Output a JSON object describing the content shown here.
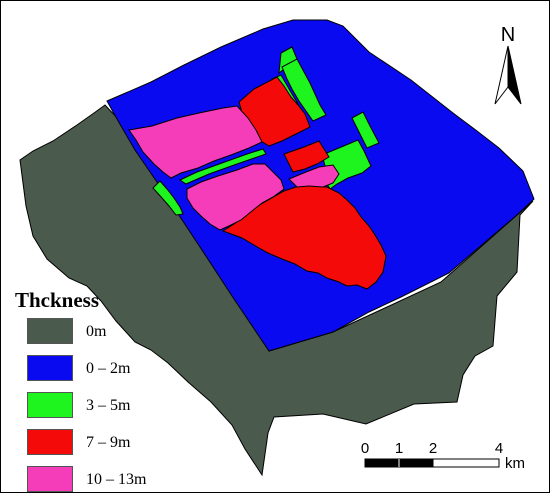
{
  "colors": {
    "dark_gray": "#4a5a4c",
    "blue": "#0a0af0",
    "green": "#1ef51e",
    "red": "#f50a0a",
    "pink": "#f53cb9"
  },
  "north_arrow": {
    "letter": "N",
    "icon": "north-arrow-icon"
  },
  "legend": {
    "title": "Thckness",
    "items": [
      {
        "label": "0m",
        "color": "#4a5a4c"
      },
      {
        "label": "0 – 2m",
        "color": "#0a0af0"
      },
      {
        "label": "3 – 5m",
        "color": "#1ef51e"
      },
      {
        "label": "7 – 9m",
        "color": "#f50a0a"
      },
      {
        "label": "10 – 13m",
        "color": "#f53cb9"
      }
    ]
  },
  "scale_bar": {
    "ticks": [
      "0",
      "1",
      "2",
      "4"
    ],
    "unit": "km"
  }
}
